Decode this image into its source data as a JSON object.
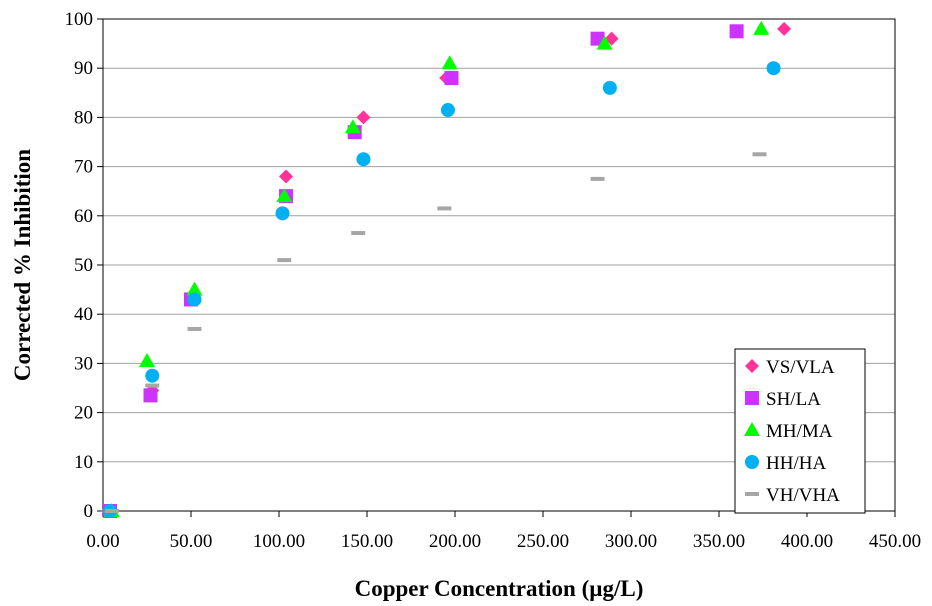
{
  "chart_data": {
    "type": "scatter",
    "title": "",
    "xlabel": "Copper Concentration (µg/L)",
    "ylabel": "Corrected % Inhibition",
    "xlim": [
      0,
      450
    ],
    "ylim": [
      0,
      100
    ],
    "x_ticks": [
      "0.00",
      "50.00",
      "100.00",
      "150.00",
      "200.00",
      "250.00",
      "300.00",
      "350.00",
      "400.00",
      "450.00"
    ],
    "y_ticks": [
      "0",
      "10",
      "20",
      "30",
      "40",
      "50",
      "60",
      "70",
      "80",
      "90",
      "100"
    ],
    "grid": "horizontal",
    "legend_position": "bottom-right",
    "series": [
      {
        "name": "VS/VLA",
        "marker": "diamond",
        "color": "#ff3399",
        "x": [
          3,
          28,
          52,
          104,
          148,
          195,
          289,
          387
        ],
        "y": [
          0,
          24.5,
          43,
          68,
          80,
          88,
          96,
          98
        ]
      },
      {
        "name": "SH/LA",
        "marker": "square",
        "color": "#cc33ff",
        "x": [
          4,
          27,
          50,
          104,
          143,
          198,
          281,
          360
        ],
        "y": [
          0,
          23.5,
          43,
          64,
          77,
          88,
          96,
          97.5
        ]
      },
      {
        "name": "MH/MA",
        "marker": "triangle",
        "color": "#00ff00",
        "x": [
          5,
          25,
          52,
          103,
          142,
          197,
          285,
          374
        ],
        "y": [
          0,
          30.5,
          45,
          64,
          78,
          91,
          95,
          98
        ]
      },
      {
        "name": "HH/HA",
        "marker": "circle",
        "color": "#00b0f0",
        "x": [
          4,
          28,
          52,
          102,
          148,
          196,
          288,
          381
        ],
        "y": [
          0,
          27.5,
          43,
          60.5,
          71.5,
          81.5,
          86,
          90
        ]
      },
      {
        "name": "VH/VHA",
        "marker": "dash",
        "color": "#a6a6a6",
        "x": [
          5,
          28,
          52,
          103,
          145,
          194,
          281,
          373
        ],
        "y": [
          0,
          25.5,
          37,
          51,
          56.5,
          61.5,
          67.5,
          72.5
        ]
      }
    ]
  }
}
